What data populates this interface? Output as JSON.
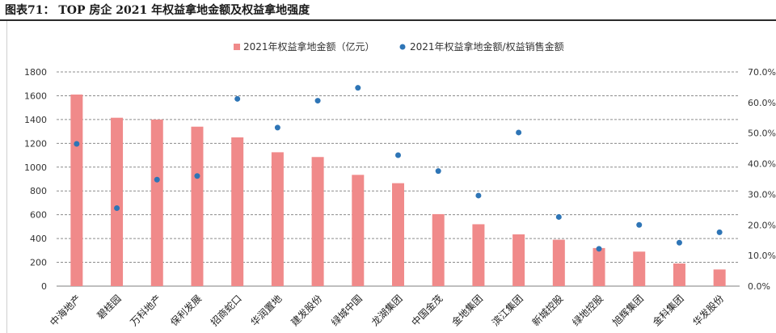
{
  "figure_title": "图表71：  TOP 房企 2021 年权益拿地金额及权益拿地强度",
  "chart_data": {
    "type": "bar",
    "categories": [
      "中海地产",
      "碧桂园",
      "万科地产",
      "保利发展",
      "招商蛇口",
      "华润置地",
      "建发股份",
      "绿城中国",
      "龙湖集团",
      "中国金茂",
      "金地集团",
      "滨江集团",
      "新城控股",
      "绿地控股",
      "旭辉集团",
      "金科集团",
      "华发股份"
    ],
    "series": [
      {
        "name": "2021年权益拿地金额（亿元）",
        "type": "bar",
        "axis": "left",
        "color": "#f08a8a",
        "values": [
          1610,
          1415,
          1400,
          1340,
          1250,
          1125,
          1085,
          935,
          865,
          605,
          520,
          435,
          390,
          320,
          290,
          190,
          140
        ]
      },
      {
        "name": "2021年权益拿地金额/权益销售金额",
        "type": "scatter",
        "axis": "right",
        "color": "#2e75b6",
        "values": [
          46.5,
          25.5,
          34.8,
          36.0,
          61.2,
          51.8,
          60.6,
          64.8,
          42.8,
          37.6,
          29.6,
          50.2,
          22.6,
          12.2,
          20.0,
          14.2,
          17.6
        ]
      }
    ],
    "y_left": {
      "min": 0,
      "max": 1800,
      "step": 200,
      "ticks": [
        "0",
        "200",
        "400",
        "600",
        "800",
        "1000",
        "1200",
        "1400",
        "1600",
        "1800"
      ]
    },
    "y_right": {
      "min": 0,
      "max": 70,
      "step": 10,
      "ticks": [
        "0.0%",
        "10.0%",
        "20.0%",
        "30.0%",
        "40.0%",
        "50.0%",
        "60.0%",
        "70.0%"
      ]
    },
    "grid": "horizontal-dashed",
    "legend_position": "top"
  }
}
